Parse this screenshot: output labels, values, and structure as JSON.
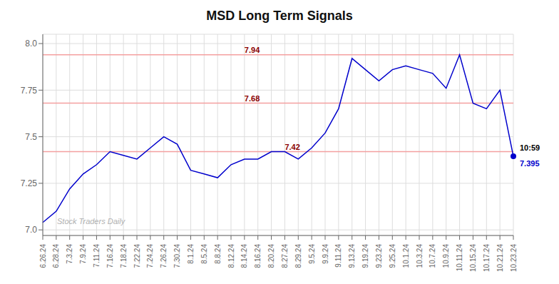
{
  "chart_data": {
    "type": "line",
    "title": "MSD Long Term Signals",
    "categories": [
      "6.26.24",
      "6.28.24",
      "7.3.24",
      "7.9.24",
      "7.11.24",
      "7.16.24",
      "7.18.24",
      "7.22.24",
      "7.24.24",
      "7.26.24",
      "7.30.24",
      "8.1.24",
      "8.5.24",
      "8.8.24",
      "8.12.24",
      "8.14.24",
      "8.16.24",
      "8.20.24",
      "8.27.24",
      "8.29.24",
      "9.5.24",
      "9.9.24",
      "9.11.24",
      "9.13.24",
      "9.19.24",
      "9.23.24",
      "9.25.24",
      "10.1.24",
      "10.3.24",
      "10.7.24",
      "10.9.24",
      "10.11.24",
      "10.15.24",
      "10.17.24",
      "10.21.24",
      "10.23.24"
    ],
    "values": [
      7.04,
      7.1,
      7.22,
      7.3,
      7.35,
      7.42,
      7.4,
      7.38,
      7.44,
      7.5,
      7.46,
      7.32,
      7.3,
      7.28,
      7.35,
      7.38,
      7.38,
      7.42,
      7.42,
      7.38,
      7.44,
      7.52,
      7.65,
      7.92,
      7.86,
      7.8,
      7.86,
      7.88,
      7.86,
      7.84,
      7.76,
      7.94,
      7.68,
      7.65,
      7.75,
      7.395
    ],
    "color": "#0000cc",
    "ylim": [
      6.97,
      8.05
    ],
    "yticks": [
      {
        "value": 7.0,
        "label": "7.0"
      },
      7.25,
      7.5,
      7.75,
      {
        "value": 8.0,
        "label": "8.0"
      }
    ],
    "grid": true,
    "reference_lines": [
      {
        "value": 7.94,
        "label": "7.94",
        "x": "8.14.24",
        "color": "#f4a0a0",
        "label_color": "#8b0000"
      },
      {
        "value": 7.68,
        "label": "7.68",
        "x": "8.14.24",
        "color": "#f4a0a0",
        "label_color": "#8b0000"
      },
      {
        "value": 7.42,
        "label": "7.42",
        "x": "8.27.24",
        "color": "#f4a0a0",
        "label_color": "#8b0000"
      }
    ],
    "annotations": [
      {
        "text": "10:59",
        "x": "10.23.24",
        "y": 7.395,
        "color": "#000000"
      },
      {
        "text": "7.395",
        "x": "10.23.24",
        "y": 7.395,
        "color": "#0000cc"
      },
      {
        "text": "Stock Traders Daily",
        "color": "#b0b0b0"
      }
    ]
  }
}
